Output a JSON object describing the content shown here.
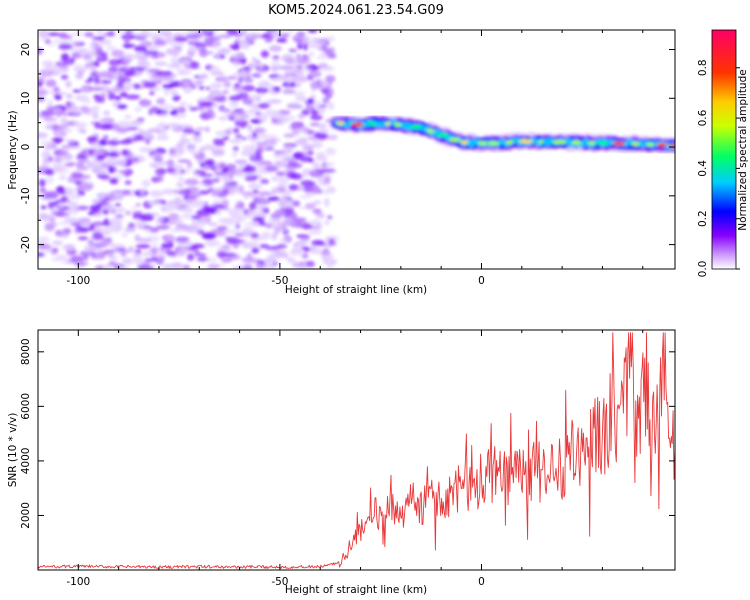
{
  "title": "KOM5.2024.061.23.54.G09",
  "chart_data": [
    {
      "type": "heatmap",
      "xlabel": "Height of straight line (km)",
      "ylabel": "Frequency (Hz)",
      "xlim": [
        -110,
        48
      ],
      "ylim": [
        -25,
        24
      ],
      "x_ticks": [
        -100,
        -50,
        0
      ],
      "y_ticks": [
        20,
        10,
        0,
        -10,
        -20
      ],
      "noise_region_x": [
        -110,
        -37
      ],
      "signal_track": {
        "x": [
          -36,
          -30,
          -25,
          -20,
          -15,
          -10,
          -5,
          0,
          5,
          10,
          20,
          30,
          40,
          48
        ],
        "frequency": [
          5,
          4.5,
          5,
          4.5,
          4,
          2.5,
          1,
          0.8,
          0.8,
          1.2,
          1,
          0.8,
          0.6,
          0.2
        ]
      },
      "colorbar": {
        "label": "Normalized spectral amplitude",
        "range": [
          0,
          0.95
        ],
        "ticks": [
          "0.0",
          "0.2",
          "0.4",
          "0.6",
          "0.8"
        ],
        "colors": [
          "#ffffff",
          "#cc99ff",
          "#8800ff",
          "#0000ff",
          "#00ccff",
          "#00ff66",
          "#ccff00",
          "#ffcc00",
          "#ff3300",
          "#ff0066"
        ]
      }
    },
    {
      "type": "line",
      "xlabel": "Height of straight line (km)",
      "ylabel": "SNR (10 * v/v)",
      "xlim": [
        -110,
        48
      ],
      "ylim": [
        0,
        8800
      ],
      "x_ticks": [
        -100,
        -50,
        0
      ],
      "y_ticks": [
        2000,
        4000,
        6000,
        8000
      ],
      "color": "#e8393a",
      "series": [
        {
          "x": [
            -110,
            -100,
            -90,
            -80,
            -70,
            -60,
            -50,
            -40,
            -35,
            -33,
            -30,
            -27,
            -25,
            -22,
            -20,
            -17,
            -15,
            -12,
            -10,
            -7,
            -5,
            -2,
            0,
            3,
            5,
            8,
            10,
            13,
            15,
            18,
            20,
            23,
            25,
            28,
            30,
            33,
            35,
            37,
            38,
            40,
            42,
            45,
            48
          ],
          "values": [
            120,
            130,
            120,
            110,
            120,
            110,
            110,
            120,
            250,
            600,
            1500,
            2200,
            1800,
            2300,
            1700,
            2600,
            2200,
            2700,
            2400,
            3000,
            2900,
            3300,
            3100,
            3500,
            3300,
            3600,
            3400,
            3800,
            3500,
            3800,
            3700,
            4400,
            4200,
            5200,
            4600,
            6000,
            5200,
            8700,
            4500,
            6800,
            5800,
            6200,
            4400
          ]
        }
      ]
    }
  ]
}
